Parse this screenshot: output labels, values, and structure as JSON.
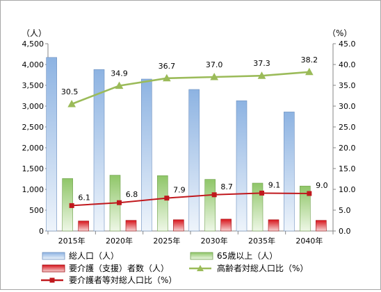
{
  "chart_data": {
    "type": "bar",
    "categories": [
      "2015年",
      "2020年",
      "2025年",
      "2030年",
      "2035年",
      "2040年"
    ],
    "left_axis": {
      "unit": "（人）",
      "range": [
        0,
        4500
      ],
      "ticks": [
        "0",
        "500",
        "1,000",
        "1,500",
        "2,000",
        "2,500",
        "3,000",
        "3,500",
        "4,000",
        "4,500"
      ]
    },
    "right_axis": {
      "unit": "（%）",
      "range": [
        0,
        45
      ],
      "ticks": [
        "0.0",
        "5.0",
        "10.0",
        "15.0",
        "20.0",
        "25.0",
        "30.0",
        "35.0",
        "40.0",
        "45.0"
      ]
    },
    "series": [
      {
        "name": "総人口（人）",
        "kind": "bar",
        "axis": "left",
        "color": "#8db3e2",
        "values": [
          4170,
          3880,
          3650,
          3400,
          3130,
          2860
        ]
      },
      {
        "name": "65歳以上（人）",
        "kind": "bar",
        "axis": "left",
        "color": "#9bcc73",
        "values": [
          1260,
          1340,
          1330,
          1240,
          1150,
          1080
        ]
      },
      {
        "name": "要介護（支援）者数（人）",
        "kind": "bar",
        "axis": "left",
        "color": "#e0262b",
        "values": [
          240,
          255,
          270,
          285,
          270,
          255
        ]
      },
      {
        "name": "高齢者対総人口比（%）",
        "kind": "line",
        "axis": "right",
        "color": "#9bbb59",
        "marker": "triangle",
        "values": [
          30.5,
          34.9,
          36.7,
          37.0,
          37.3,
          38.2
        ],
        "labels": [
          "30.5",
          "34.9",
          "36.7",
          "37.0",
          "37.3",
          "38.2"
        ]
      },
      {
        "name": "要介護者等対総人口比（%）",
        "kind": "line",
        "axis": "right",
        "color": "#c0181d",
        "marker": "square",
        "values": [
          6.1,
          6.8,
          7.9,
          8.7,
          9.1,
          9.0
        ],
        "labels": [
          "6.1",
          "6.8",
          "7.9",
          "8.7",
          "9.1",
          "9.0"
        ]
      }
    ],
    "grid": false,
    "legend_position": "bottom"
  }
}
